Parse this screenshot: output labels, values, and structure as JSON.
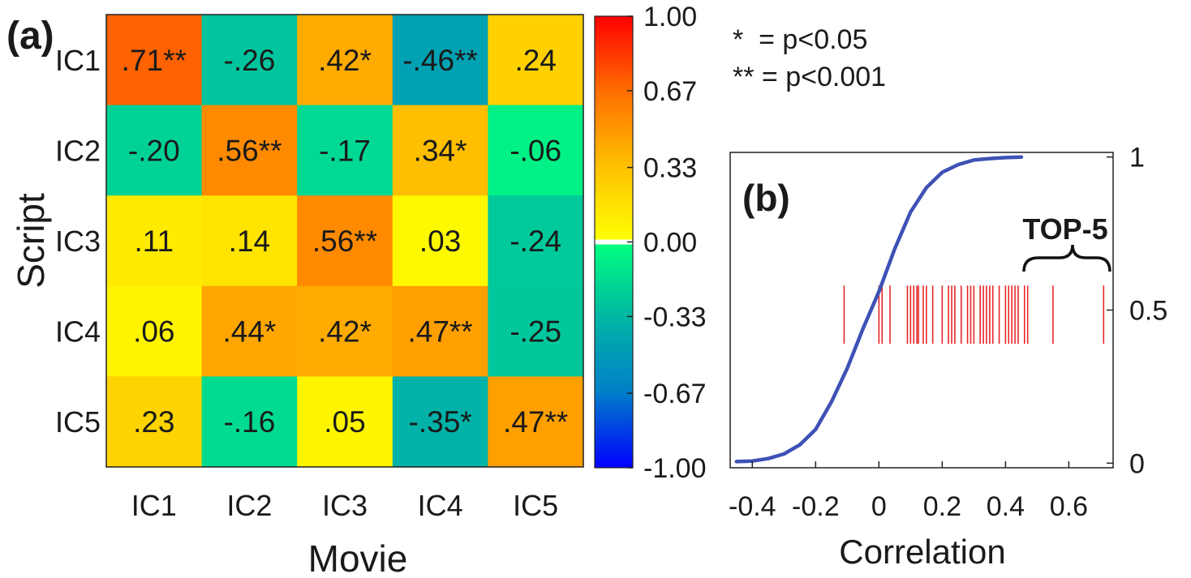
{
  "chart_data": [
    {
      "type": "heatmap",
      "panel_label": "(a)",
      "xlabel": "Movie",
      "ylabel": "Script",
      "x_categories": [
        "IC1",
        "IC2",
        "IC3",
        "IC4",
        "IC5"
      ],
      "y_categories": [
        "IC1",
        "IC2",
        "IC3",
        "IC4",
        "IC5"
      ],
      "values": [
        [
          0.71,
          -0.26,
          0.42,
          -0.46,
          0.24
        ],
        [
          -0.2,
          0.56,
          -0.17,
          0.34,
          -0.06
        ],
        [
          0.11,
          0.14,
          0.56,
          0.03,
          -0.24
        ],
        [
          0.06,
          0.44,
          0.42,
          0.47,
          -0.25
        ],
        [
          0.23,
          -0.16,
          0.05,
          -0.35,
          0.47
        ]
      ],
      "cell_labels": [
        [
          ".71**",
          "-.26",
          ".42*",
          "-.46**",
          ".24"
        ],
        [
          "-.20",
          ".56**",
          "-.17",
          ".34*",
          "-.06"
        ],
        [
          ".11",
          ".14",
          ".56**",
          ".03",
          "-.24"
        ],
        [
          ".06",
          ".44*",
          ".42*",
          ".47**",
          "-.25"
        ],
        [
          ".23",
          "-.16",
          ".05",
          "-.35*",
          ".47**"
        ]
      ],
      "colorbar": {
        "range": [
          -1,
          1
        ],
        "tick_values": [
          1,
          0.67,
          0.33,
          0,
          -0.33,
          -0.67,
          -1
        ],
        "tick_labels": [
          "1.00",
          "0.67",
          "0.33",
          "0.00",
          "-0.33",
          "-0.67",
          "-1.00"
        ]
      },
      "legend": {
        "single": "*  = p<0.05",
        "double": "** = p<0.001"
      }
    },
    {
      "type": "line",
      "panel_label": "(b)",
      "xlabel": "Correlation",
      "ylabel": "",
      "xlim": [
        -0.47,
        0.74
      ],
      "ylim": [
        -0.015,
        1.015
      ],
      "x_ticks": [
        -0.4,
        -0.2,
        0,
        0.2,
        0.4,
        0.6
      ],
      "x_tick_labels": [
        "-0.4",
        "-0.2",
        "0",
        "0.2",
        "0.4",
        "0.6"
      ],
      "y_ticks": [
        0,
        0.5,
        1
      ],
      "y_tick_labels": [
        "0",
        "0.5",
        "1"
      ],
      "cdf_curve": {
        "color": "#3e51b5",
        "x": [
          -0.45,
          -0.4,
          -0.35,
          -0.3,
          -0.25,
          -0.2,
          -0.15,
          -0.1,
          -0.05,
          0,
          0.05,
          0.1,
          0.15,
          0.2,
          0.25,
          0.3,
          0.35,
          0.4,
          0.45
        ],
        "y": [
          0.005,
          0.007,
          0.015,
          0.03,
          0.06,
          0.11,
          0.2,
          0.31,
          0.44,
          0.56,
          0.7,
          0.82,
          0.9,
          0.95,
          0.975,
          0.99,
          0.995,
          0.998,
          1.0
        ]
      },
      "rug": {
        "color": "#e8262a",
        "y_range": [
          0.39,
          0.58
        ],
        "x": [
          -0.11,
          0.0,
          0.01,
          0.035,
          0.09,
          0.1,
          0.11,
          0.12,
          0.125,
          0.14,
          0.15,
          0.17,
          0.2,
          0.22,
          0.23,
          0.24,
          0.26,
          0.28,
          0.29,
          0.3,
          0.32,
          0.33,
          0.34,
          0.35,
          0.36,
          0.38,
          0.4,
          0.41,
          0.42,
          0.43,
          0.44,
          0.46,
          0.47,
          0.55,
          0.71
        ]
      },
      "annotation": "TOP-5"
    }
  ]
}
